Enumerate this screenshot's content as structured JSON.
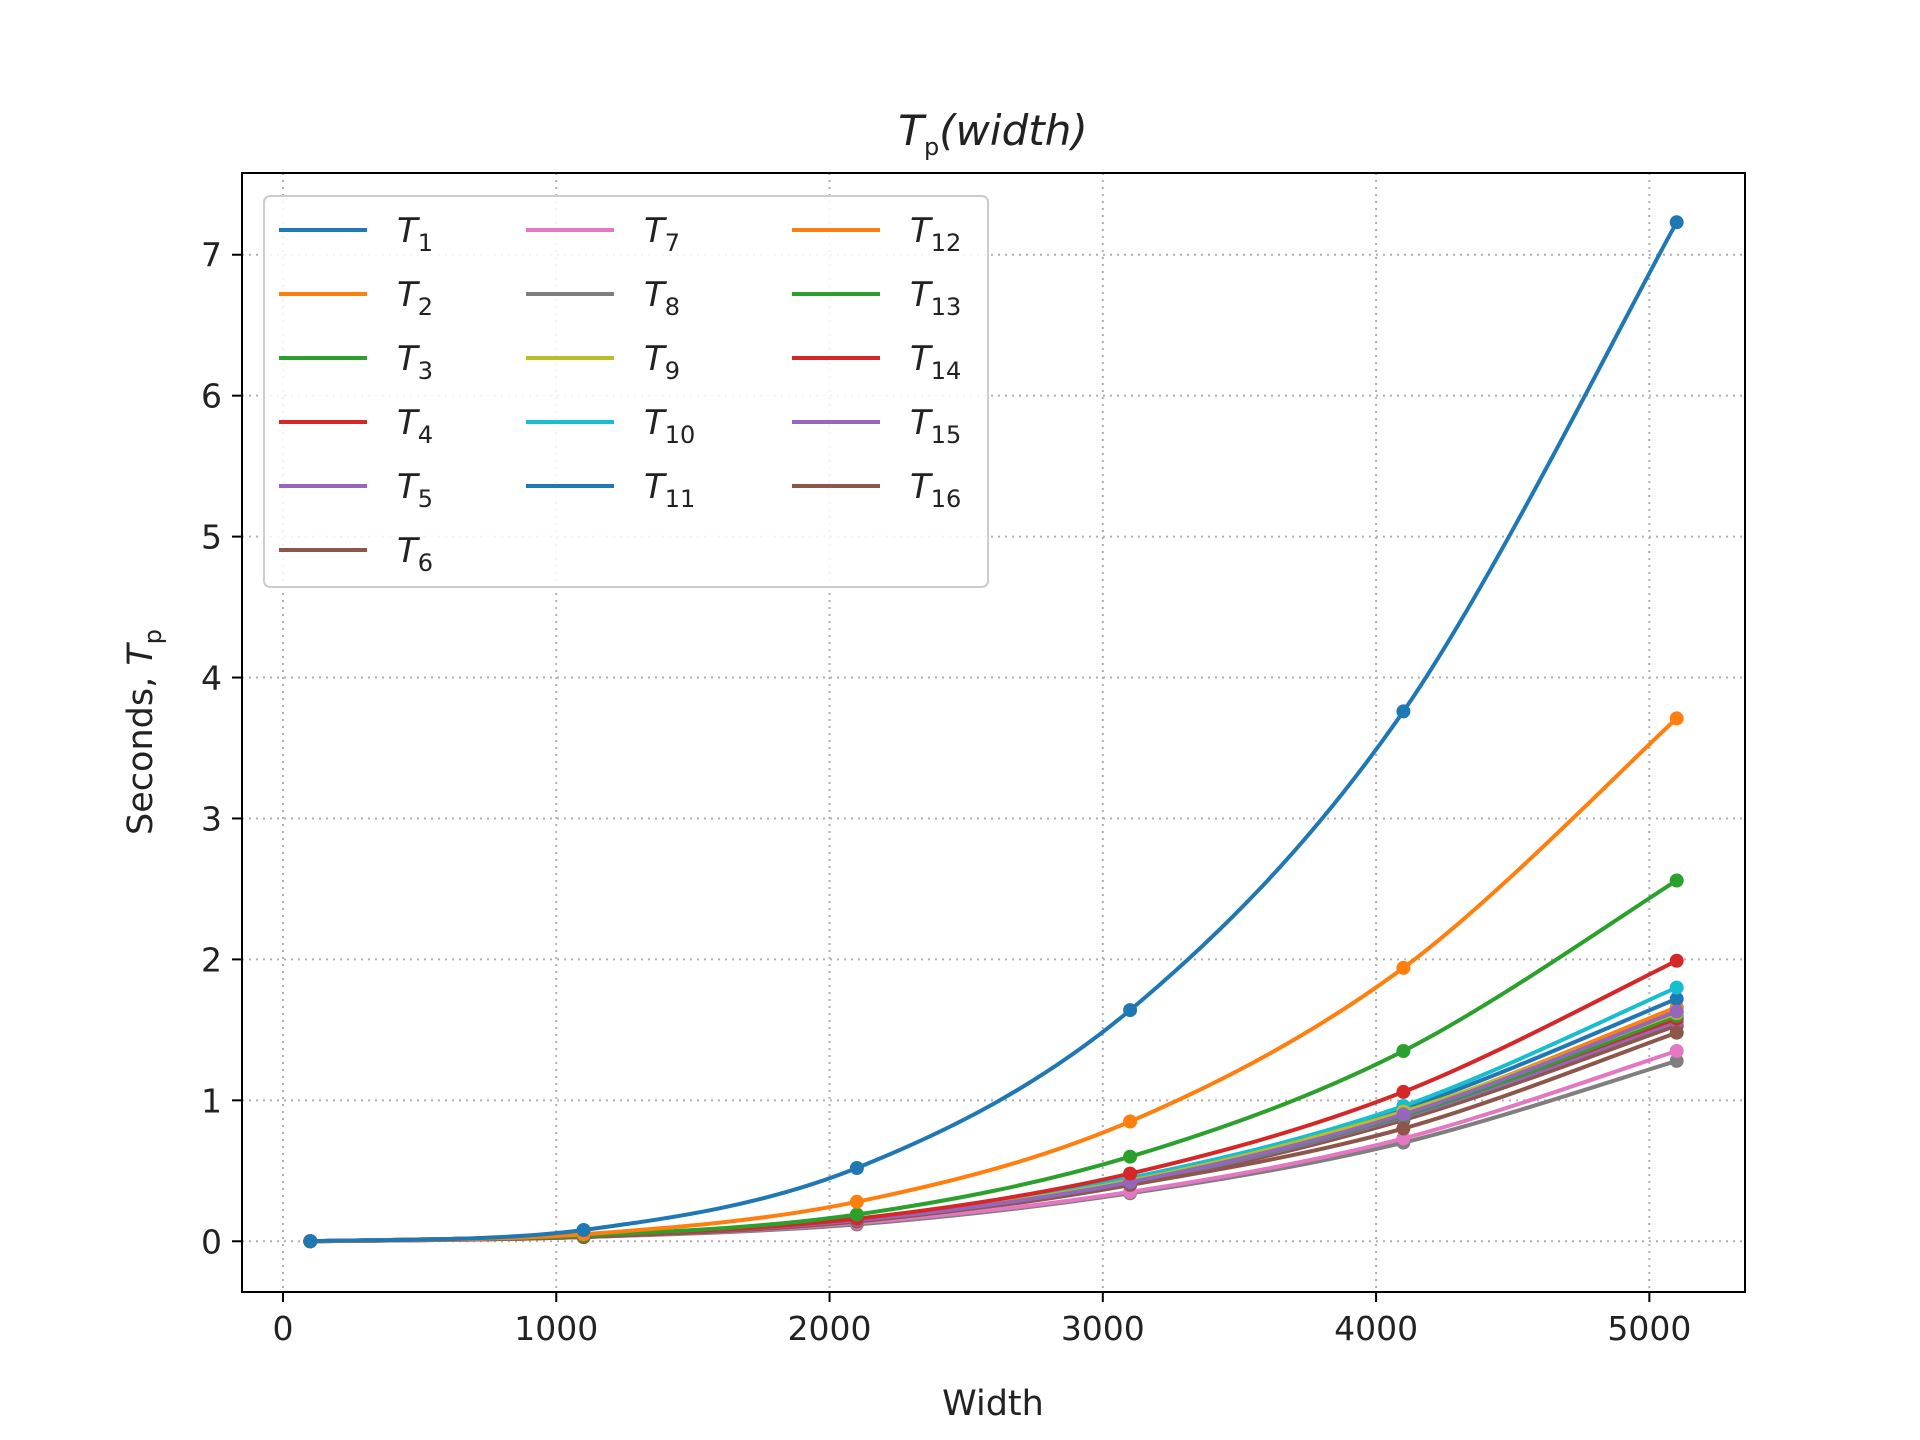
{
  "chart_data": {
    "type": "line",
    "title_main": "T",
    "title_sub": "p",
    "title_tail": "(width)",
    "xlabel": "Width",
    "ylabel_prefix": "Seconds, ",
    "ylabel_var": "T",
    "ylabel_sub": "p",
    "xlim": [
      -150,
      5350
    ],
    "ylim": [
      -0.36,
      7.58
    ],
    "xticks": [
      0,
      1000,
      2000,
      3000,
      4000,
      5000
    ],
    "yticks": [
      0,
      1,
      2,
      3,
      4,
      5,
      6,
      7
    ],
    "grid": true,
    "legend_position": "top-left",
    "legend_columns": 3,
    "x": [
      100,
      1100,
      2100,
      3100,
      4100,
      5100
    ],
    "series": [
      {
        "name": "T",
        "sub": "1",
        "color": "#1f77b4",
        "values": [
          0.0,
          0.08,
          0.52,
          1.64,
          3.76,
          7.23
        ]
      },
      {
        "name": "T",
        "sub": "2",
        "color": "#ff7f0e",
        "values": [
          0.0,
          0.05,
          0.28,
          0.85,
          1.94,
          3.71
        ]
      },
      {
        "name": "T",
        "sub": "3",
        "color": "#2ca02c",
        "values": [
          0.0,
          0.04,
          0.19,
          0.6,
          1.35,
          2.56
        ]
      },
      {
        "name": "T",
        "sub": "4",
        "color": "#d62728",
        "values": [
          0.0,
          0.04,
          0.16,
          0.48,
          1.06,
          1.99
        ]
      },
      {
        "name": "T",
        "sub": "5",
        "color": "#9467bd",
        "values": [
          0.0,
          0.04,
          0.15,
          0.42,
          0.9,
          1.63
        ]
      },
      {
        "name": "T",
        "sub": "6",
        "color": "#8c564b",
        "values": [
          0.0,
          0.03,
          0.14,
          0.4,
          0.8,
          1.48
        ]
      },
      {
        "name": "T",
        "sub": "7",
        "color": "#e377c2",
        "values": [
          0.0,
          0.03,
          0.13,
          0.35,
          0.73,
          1.35
        ]
      },
      {
        "name": "T",
        "sub": "8",
        "color": "#7f7f7f",
        "values": [
          0.0,
          0.03,
          0.12,
          0.34,
          0.7,
          1.28
        ]
      },
      {
        "name": "T",
        "sub": "9",
        "color": "#bcbd22",
        "values": [
          0.0,
          0.04,
          0.15,
          0.43,
          0.92,
          1.62
        ]
      },
      {
        "name": "T",
        "sub": "10",
        "color": "#17becf",
        "values": [
          0.0,
          0.04,
          0.16,
          0.45,
          0.96,
          1.8
        ]
      },
      {
        "name": "T",
        "sub": "11",
        "color": "#1f77b4",
        "values": [
          0.0,
          0.04,
          0.15,
          0.44,
          0.94,
          1.72
        ]
      },
      {
        "name": "T",
        "sub": "12",
        "color": "#ff7f0e",
        "values": [
          0.0,
          0.04,
          0.15,
          0.43,
          0.91,
          1.66
        ]
      },
      {
        "name": "T",
        "sub": "13",
        "color": "#2ca02c",
        "values": [
          0.0,
          0.04,
          0.15,
          0.42,
          0.89,
          1.6
        ]
      },
      {
        "name": "T",
        "sub": "14",
        "color": "#d62728",
        "values": [
          0.0,
          0.04,
          0.15,
          0.42,
          0.9,
          1.58
        ]
      },
      {
        "name": "T",
        "sub": "15",
        "color": "#9467bd",
        "values": [
          0.0,
          0.04,
          0.14,
          0.41,
          0.88,
          1.56
        ]
      },
      {
        "name": "T",
        "sub": "16",
        "color": "#8c564b",
        "values": [
          0.0,
          0.03,
          0.14,
          0.4,
          0.86,
          1.53
        ]
      }
    ]
  }
}
